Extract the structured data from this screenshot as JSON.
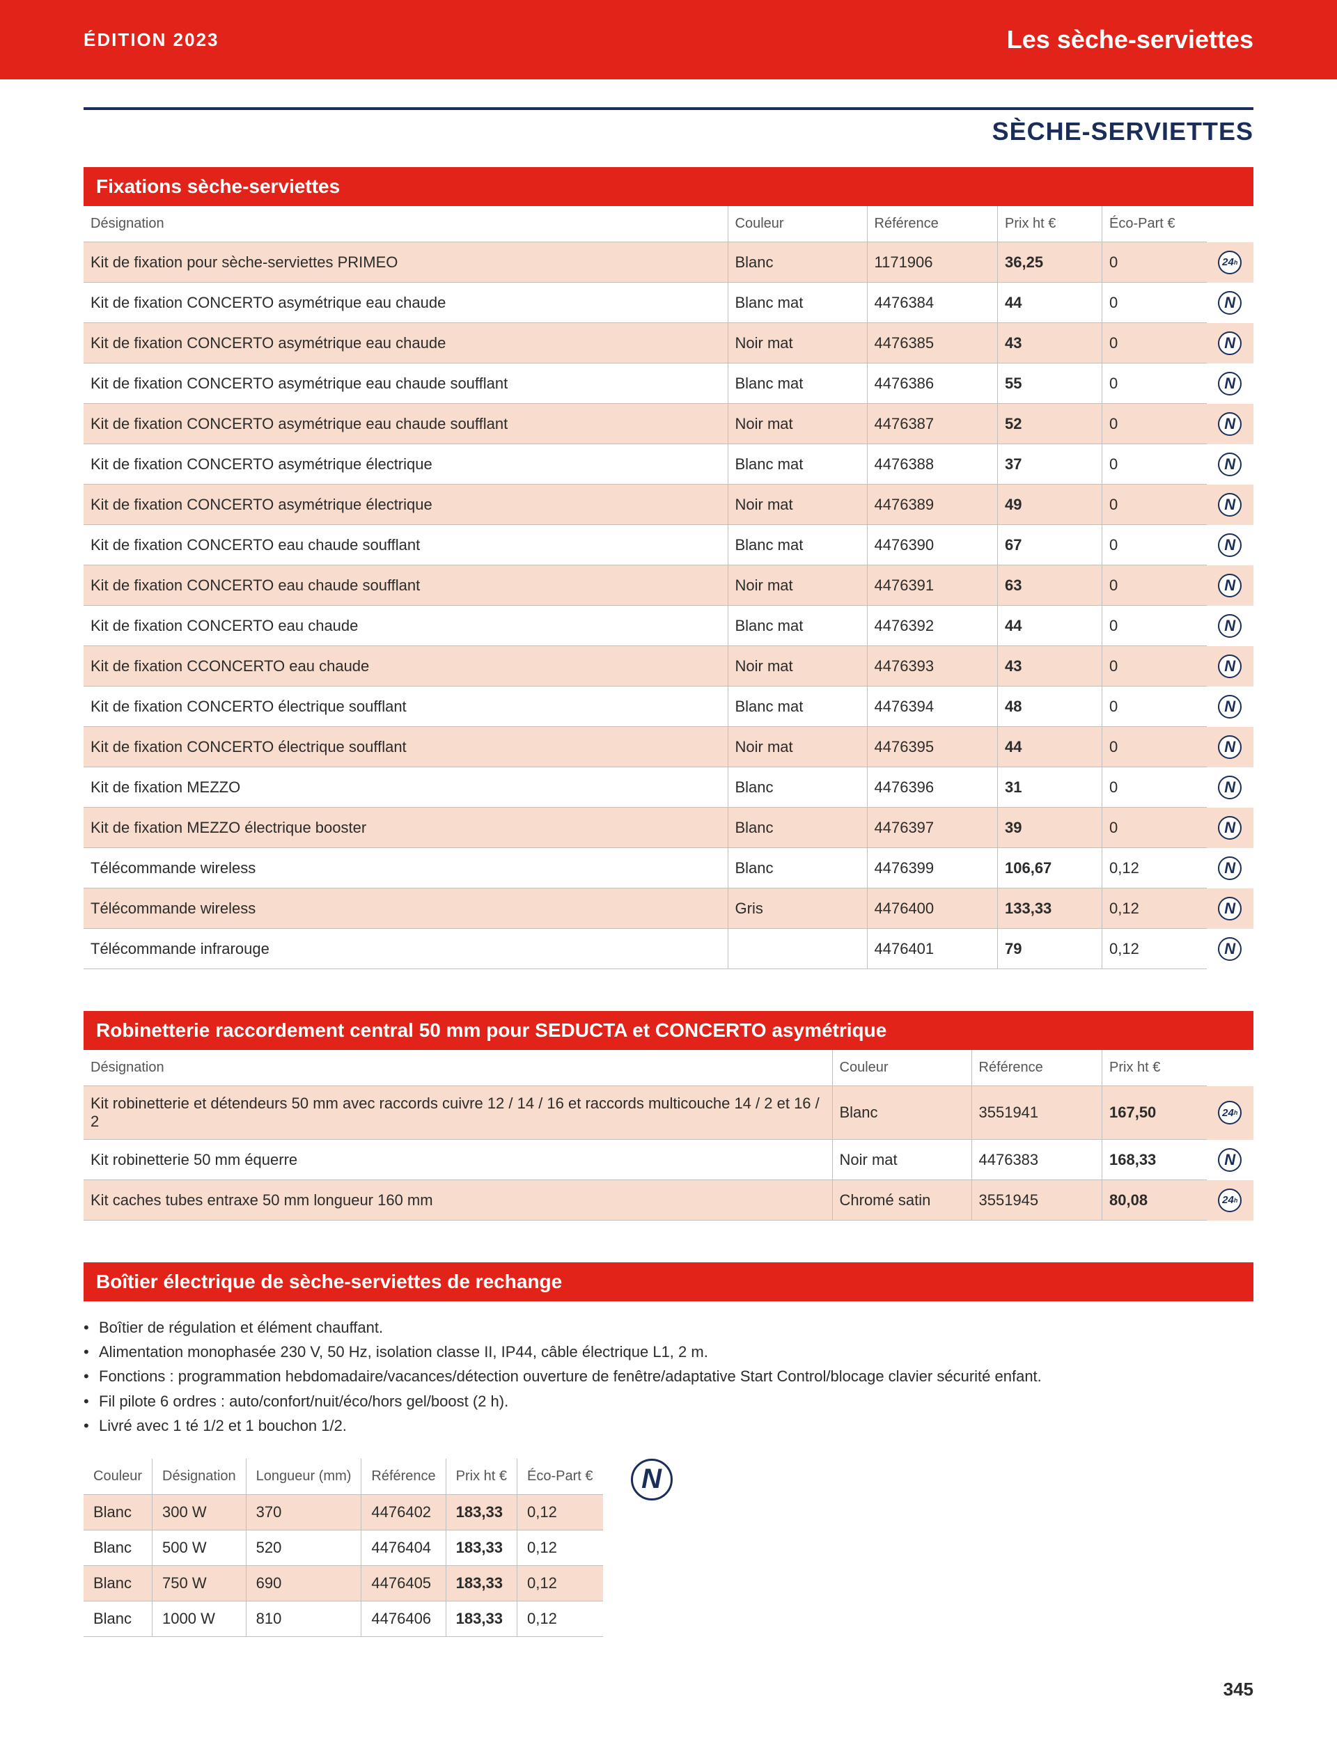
{
  "header": {
    "edition": "ÉDITION 2023",
    "category": "Les sèche-serviettes"
  },
  "sectionTitle": "SÈCHE-SERVIETTES",
  "table1": {
    "title": "Fixations sèche-serviettes",
    "headers": [
      "Désignation",
      "Couleur",
      "Référence",
      "Prix ht €",
      "Éco-Part €"
    ],
    "colWidths": [
      "740px",
      "160px",
      "150px",
      "120px",
      "120px",
      "50px"
    ],
    "rows": [
      {
        "shade": true,
        "c": [
          "Kit de fixation pour sèche-serviettes PRIMEO",
          "Blanc",
          "1171906",
          "36,25",
          "0"
        ],
        "badge": "24"
      },
      {
        "shade": false,
        "c": [
          "Kit de fixation CONCERTO asymétrique eau chaude",
          "Blanc mat",
          "4476384",
          "44",
          "0"
        ],
        "badge": "N"
      },
      {
        "shade": true,
        "c": [
          "Kit de fixation CONCERTO asymétrique eau chaude",
          "Noir mat",
          "4476385",
          "43",
          "0"
        ],
        "badge": "N"
      },
      {
        "shade": false,
        "c": [
          "Kit de fixation CONCERTO asymétrique eau chaude soufflant",
          "Blanc mat",
          "4476386",
          "55",
          "0"
        ],
        "badge": "N"
      },
      {
        "shade": true,
        "c": [
          "Kit de fixation CONCERTO asymétrique eau chaude soufflant",
          "Noir mat",
          "4476387",
          "52",
          "0"
        ],
        "badge": "N"
      },
      {
        "shade": false,
        "c": [
          "Kit de fixation CONCERTO asymétrique électrique",
          "Blanc mat",
          "4476388",
          "37",
          "0"
        ],
        "badge": "N"
      },
      {
        "shade": true,
        "c": [
          "Kit de fixation CONCERTO asymétrique électrique",
          "Noir mat",
          "4476389",
          "49",
          "0"
        ],
        "badge": "N"
      },
      {
        "shade": false,
        "c": [
          "Kit de fixation CONCERTO eau chaude soufflant",
          "Blanc mat",
          "4476390",
          "67",
          "0"
        ],
        "badge": "N"
      },
      {
        "shade": true,
        "c": [
          "Kit de fixation CONCERTO eau chaude soufflant",
          "Noir mat",
          "4476391",
          "63",
          "0"
        ],
        "badge": "N"
      },
      {
        "shade": false,
        "c": [
          "Kit de fixation CONCERTO eau chaude",
          "Blanc mat",
          "4476392",
          "44",
          "0"
        ],
        "badge": "N"
      },
      {
        "shade": true,
        "c": [
          "Kit de fixation CCONCERTO eau chaude",
          "Noir mat",
          "4476393",
          "43",
          "0"
        ],
        "badge": "N"
      },
      {
        "shade": false,
        "c": [
          "Kit de fixation CONCERTO électrique soufflant",
          "Blanc mat",
          "4476394",
          "48",
          "0"
        ],
        "badge": "N"
      },
      {
        "shade": true,
        "c": [
          "Kit de fixation CONCERTO électrique soufflant",
          "Noir mat",
          "4476395",
          "44",
          "0"
        ],
        "badge": "N"
      },
      {
        "shade": false,
        "c": [
          "Kit de fixation MEZZO",
          "Blanc",
          "4476396",
          "31",
          "0"
        ],
        "badge": "N"
      },
      {
        "shade": true,
        "c": [
          "Kit de fixation MEZZO électrique booster",
          "Blanc",
          "4476397",
          "39",
          "0"
        ],
        "badge": "N"
      },
      {
        "shade": false,
        "c": [
          "Télécommande wireless",
          "Blanc",
          "4476399",
          "106,67",
          "0,12"
        ],
        "badge": "N"
      },
      {
        "shade": true,
        "c": [
          "Télécommande wireless",
          "Gris",
          "4476400",
          "133,33",
          "0,12"
        ],
        "badge": "N"
      },
      {
        "shade": false,
        "c": [
          "Télécommande infrarouge",
          "",
          "4476401",
          "79",
          "0,12"
        ],
        "badge": "N"
      }
    ]
  },
  "table2": {
    "title": "Robinetterie raccordement central 50 mm pour SEDUCTA et CONCERTO asymétrique",
    "headers": [
      "Désignation",
      "Couleur",
      "Référence",
      "Prix ht €"
    ],
    "colWidths": [
      "860px",
      "160px",
      "150px",
      "120px",
      "50px"
    ],
    "rows": [
      {
        "shade": true,
        "c": [
          "Kit robinetterie et détendeurs 50 mm avec raccords cuivre 12 / 14 / 16 et raccords multicouche 14 / 2 et 16 / 2",
          "Blanc",
          "3551941",
          "167,50"
        ],
        "badge": "24"
      },
      {
        "shade": false,
        "c": [
          "Kit robinetterie 50 mm équerre",
          "Noir mat",
          "4476383",
          "168,33"
        ],
        "badge": "N"
      },
      {
        "shade": true,
        "c": [
          "Kit caches tubes entraxe 50 mm longueur 160 mm",
          "Chromé satin",
          "3551945",
          "80,08"
        ],
        "badge": "24"
      }
    ]
  },
  "section3": {
    "title": "Boîtier électrique de sèche-serviettes de rechange",
    "bullets": [
      "Boîtier de régulation et élément chauffant.",
      "Alimentation monophasée 230 V, 50 Hz, isolation classe II, IP44, câble électrique L1, 2 m.",
      "Fonctions : programmation hebdomadaire/vacances/détection ouverture de fenêtre/adaptative Start Control/blocage clavier sécurité enfant.",
      "Fil pilote 6 ordres : auto/confort/nuit/éco/hors gel/boost (2 h).",
      "Livré avec 1 té 1/2 et 1 bouchon 1/2."
    ],
    "table": {
      "headers": [
        "Couleur",
        "Désignation",
        "Longueur (mm)",
        "Référence",
        "Prix ht €",
        "Éco-Part €"
      ],
      "rows": [
        {
          "shade": true,
          "c": [
            "Blanc",
            "300 W",
            "370",
            "4476402",
            "183,33",
            "0,12"
          ]
        },
        {
          "shade": false,
          "c": [
            "Blanc",
            "500 W",
            "520",
            "4476404",
            "183,33",
            "0,12"
          ]
        },
        {
          "shade": true,
          "c": [
            "Blanc",
            "750 W",
            "690",
            "4476405",
            "183,33",
            "0,12"
          ]
        },
        {
          "shade": false,
          "c": [
            "Blanc",
            "1000 W",
            "810",
            "4476406",
            "183,33",
            "0,12"
          ]
        }
      ]
    }
  },
  "pageNumber": "345",
  "colors": {
    "red": "#e2231a",
    "navy": "#1b2e5a",
    "shade": "#f8dccd",
    "rule": "#bfbfbf",
    "text": "#2b2b2b"
  }
}
